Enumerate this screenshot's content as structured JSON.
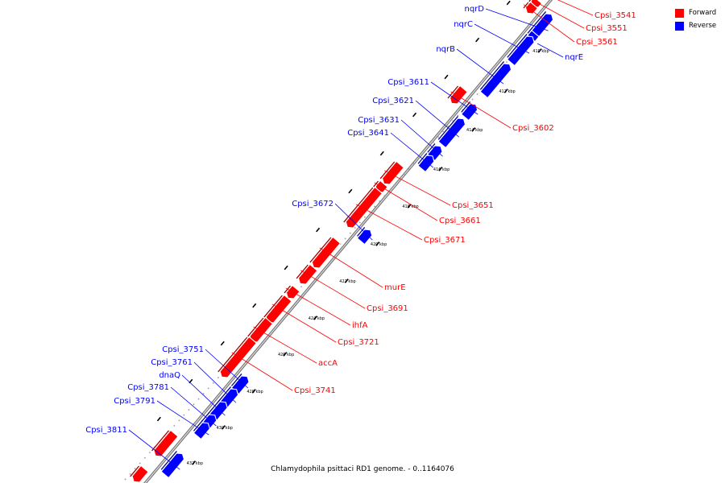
{
  "legend": {
    "forward_label": "Forward",
    "reverse_label": "Reverse",
    "forward_color": "#ff0000",
    "reverse_color": "#0000ff"
  },
  "caption": "Chlamydophila psittaci RD1 genome. - 0..1164076",
  "ticks": [
    "410 kbp",
    "412 kbp",
    "414 kbp",
    "416 kbp",
    "418 kbp",
    "420 kbp",
    "422 kbp",
    "424 kbp",
    "426 kbp",
    "428 kbp",
    "430 kbp",
    "432 kbp"
  ],
  "genes": {
    "Cpsi_3541": "Cpsi_3541",
    "Cpsi_3551": "Cpsi_3551",
    "Cpsi_3561": "Cpsi_3561",
    "nqrE": "nqrE",
    "nqrD": "nqrD",
    "nqrC": "nqrC",
    "nqrB": "nqrB",
    "Cpsi_3611": "Cpsi_3611",
    "Cpsi_3621": "Cpsi_3621",
    "Cpsi_3631": "Cpsi_3631",
    "Cpsi_3641": "Cpsi_3641",
    "Cpsi_3602": "Cpsi_3602",
    "Cpsi_3651": "Cpsi_3651",
    "Cpsi_3661": "Cpsi_3661",
    "Cpsi_3671": "Cpsi_3671",
    "Cpsi_3672": "Cpsi_3672",
    "murE": "murE",
    "Cpsi_3691": "Cpsi_3691",
    "ihfA": "ihfA",
    "Cpsi_3721": "Cpsi_3721",
    "accA": "accA",
    "Cpsi_3741": "Cpsi_3741",
    "Cpsi_3751": "Cpsi_3751",
    "Cpsi_3761": "Cpsi_3761",
    "dnaQ": "dnaQ",
    "Cpsi_3781": "Cpsi_3781",
    "Cpsi_3791": "Cpsi_3791",
    "Cpsi_3811": "Cpsi_3811"
  }
}
